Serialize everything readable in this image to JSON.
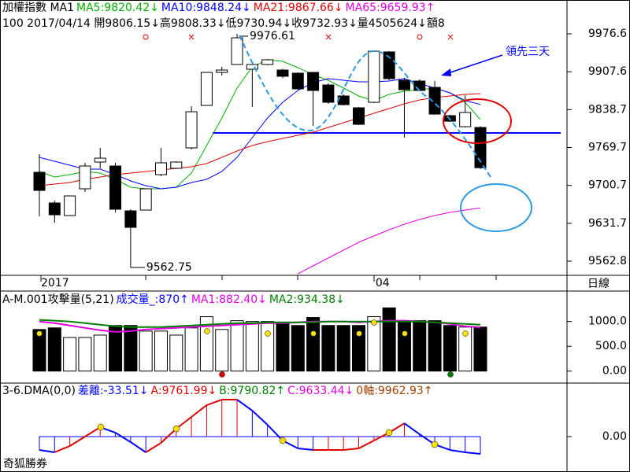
{
  "brand": "奇狐勝券",
  "chart_data": [
    {
      "type": "candlestick",
      "title": "加權指數 MA1",
      "info": "100 2017/04/14 開9806.15↓高9808.33↓低9730.94↓收9732.93↓量4505624↓額8",
      "period": "日線",
      "annotation": "領先三天",
      "categories": [
        "2017",
        null,
        null,
        null,
        null,
        null,
        null,
        null,
        null,
        null,
        null,
        null,
        null,
        null,
        null,
        null,
        null,
        null,
        null,
        null,
        null,
        null,
        "04",
        null,
        null,
        null,
        null,
        null,
        null,
        null
      ],
      "open": [
        9724.6,
        9668.7,
        9645.8,
        9694.5,
        9743.2,
        9736.0,
        9654.4,
        9655.8,
        9720.3,
        9731.8,
        9769.0,
        9846.3,
        9906.4,
        9920.8,
        9912.2,
        9920.8,
        9910.7,
        9905.0,
        9906.4,
        9883.5,
        9863.5,
        9842.0,
        9852.0,
        9943.7,
        9892.1,
        9890.7,
        9879.2,
        9827.7,
        9807.6,
        9806.15
      ],
      "high": [
        9757.5,
        9673.0,
        9681.6,
        9741.8,
        9769.0,
        9741.8,
        9657.3,
        9694.5,
        9769.0,
        9744.6,
        9844.9,
        9906.4,
        9916.5,
        9976.61,
        9920.8,
        9930.8,
        9913.0,
        9906.4,
        9906.4,
        9886.4,
        9866.4,
        9843.4,
        9946.5,
        9945.1,
        9896.4,
        9893.6,
        9890.7,
        9829.1,
        9864.9,
        9808.33
      ],
      "low": [
        9644.4,
        9632.9,
        9645.8,
        9688.8,
        9731.7,
        9651.5,
        9562.75,
        9655.8,
        9717.4,
        9730.3,
        9766.1,
        9846.3,
        9900.7,
        9920.8,
        9843.4,
        9919.4,
        9896.0,
        9875.0,
        9809.0,
        9849.2,
        9846.3,
        9810.5,
        9850.6,
        9892.1,
        9787.6,
        9872.1,
        9829.1,
        9816.2,
        9806.2,
        9730.94
      ],
      "close": [
        9691.6,
        9647.2,
        9681.6,
        9736.0,
        9750.3,
        9657.3,
        9624.3,
        9694.5,
        9741.8,
        9743.2,
        9834.8,
        9906.4,
        9910.7,
        9969.4,
        9920.8,
        9929.4,
        9899.3,
        9876.4,
        9873.5,
        9852.0,
        9847.7,
        9811.9,
        9945.1,
        9895.0,
        9874.9,
        9873.5,
        9830.5,
        9817.6,
        9833.4,
        9732.93
      ],
      "up_color": "#ffffff",
      "down_color": "#000000",
      "series": [
        {
          "name": "MA5:9820.42↓",
          "color": "#00b000",
          "values": [
            9726.0,
            9716.0,
            9720.3,
            9726.0,
            9723.2,
            9711.7,
            9697.4,
            9694.5,
            9694.5,
            9697.4,
            9723.2,
            9773.3,
            9823.4,
            9877.8,
            9916.5,
            9929.4,
            9926.5,
            9915.0,
            9902.2,
            9892.1,
            9877.8,
            9863.5,
            9854.9,
            9866.4,
            9872.1,
            9875.0,
            9877.8,
            9869.2,
            9852.0,
            9820.42
          ]
        },
        {
          "name": "MA10:9848.24↓",
          "color": "#0000ff",
          "values": [
            9751.8,
            9744.6,
            9737.5,
            9730.3,
            9730.3,
            9720.3,
            9708.8,
            9700.2,
            9694.5,
            9697.4,
            9706.0,
            9711.7,
            9726.0,
            9751.8,
            9787.6,
            9823.4,
            9852.0,
            9873.5,
            9887.8,
            9895.0,
            9892.1,
            9889.3,
            9889.3,
            9890.7,
            9895.0,
            9886.4,
            9877.8,
            9869.2,
            9854.9,
            9848.24
          ]
        },
        {
          "name": "MA21:9867.66↓",
          "color": "#e00000",
          "values": [
            9700.2,
            9703.1,
            9706.0,
            9711.7,
            9716.0,
            9720.3,
            9723.2,
            9726.0,
            9728.9,
            9731.8,
            9734.6,
            9740.3,
            9751.8,
            9763.3,
            9773.3,
            9780.4,
            9786.2,
            9791.9,
            9797.6,
            9806.2,
            9814.8,
            9823.4,
            9832.0,
            9840.6,
            9849.2,
            9856.3,
            9860.6,
            9863.5,
            9866.4,
            9867.66
          ]
        },
        {
          "name": "MA65:9659.93↑",
          "color": "#e000e0",
          "values": [
            null,
            null,
            null,
            null,
            null,
            null,
            null,
            null,
            null,
            null,
            null,
            null,
            null,
            null,
            null,
            null,
            null,
            9539.9,
            9554.2,
            9568.5,
            9582.8,
            9597.1,
            9608.6,
            9620.1,
            9630.1,
            9638.7,
            9645.8,
            9651.6,
            9655.9,
            9659.93
          ]
        }
      ],
      "hline": {
        "value": 9796.2,
        "color": "#0000ff"
      },
      "ylim": [
        9537,
        10038.2
      ],
      "yticks": [
        9976.6,
        9907.6,
        9838.7,
        9769.7,
        9700.7,
        9631.7,
        9562.8
      ]
    },
    {
      "type": "bar",
      "title": "A-M.001攻擊量(5,21)",
      "series": [
        {
          "name": "成交量_:870↑",
          "color": "#0000ff",
          "kind": "bar",
          "values": [
            838.8,
            871.0,
            677.5,
            677.5,
            725.9,
            919.4,
            919.4,
            806.5,
            806.5,
            725.9,
            871.0,
            1096.8,
            838.8,
            1016.2,
            1000.1,
            1000.1,
            951.7,
            919.4,
            1080.7,
            919.4,
            919.4,
            919.4,
            1096.8,
            1274.3,
            1016.2,
            1016.2,
            1016.2,
            919.4,
            887.2,
            887.2
          ]
        },
        {
          "name": "MA1:882.40↓",
          "color": "#e000e0",
          "kind": "line",
          "values": [
            1000.1,
            967.8,
            919.4,
            871.0,
            822.6,
            790.4,
            806.5,
            838.8,
            854.9,
            871.0,
            887.2,
            903.3,
            919.4,
            935.5,
            951.7,
            967.8,
            967.8,
            983.9,
            1000.1,
            1000.1,
            1000.1,
            983.9,
            1000.1,
            1016.2,
            1016.2,
            1000.1,
            983.9,
            951.7,
            903.3,
            882.4
          ]
        },
        {
          "name": "MA2:934.38↓",
          "color": "#008000",
          "kind": "line",
          "values": [
            1032.3,
            1016.2,
            1000.1,
            967.8,
            935.5,
            903.3,
            887.2,
            887.2,
            887.2,
            903.3,
            919.4,
            935.5,
            951.7,
            967.8,
            967.8,
            983.9,
            983.9,
            983.9,
            983.9,
            1000.1,
            1000.1,
            1000.1,
            1000.1,
            1000.1,
            1000.1,
            1000.1,
            983.9,
            967.8,
            951.7,
            934.38
          ]
        }
      ],
      "ylim": [
        -242,
        1612.9
      ],
      "yticks": [
        {
          "value": 1000,
          "label": "1000.0"
        },
        {
          "value": 500,
          "label": "500.0"
        },
        {
          "value": 0,
          "label": "0.00"
        }
      ]
    },
    {
      "type": "line",
      "title": "3-6.DMA(0,0)",
      "series": [
        {
          "name": "差離:-33.51↓",
          "color": "#0000ff",
          "up_color": "#e00000",
          "values": [
            -25.8,
            -30.4,
            -18.2,
            0,
            18.2,
            7.6,
            -10.6,
            -30.4,
            -12.2,
            15.2,
            38.0,
            60.8,
            71.4,
            71.4,
            50.2,
            22.8,
            -7.6,
            -22.8,
            -25.8,
            -25.8,
            -25.8,
            -22.8,
            -7.6,
            7.6,
            25.8,
            4.6,
            -15.2,
            -25.8,
            -30.4,
            -33.51
          ]
        }
      ],
      "legend_items": [
        {
          "text": "A:9761.99↓",
          "color": "#e00000"
        },
        {
          "text": "B:9790.82↑",
          "color": "#008000"
        },
        {
          "text": "C:9633.44↓",
          "color": "#e000e0"
        },
        {
          "text": "0軸:9962.93↑",
          "color": "#a04000"
        }
      ],
      "ylim": [
        -68.4,
        103.4
      ],
      "yticks": [
        {
          "value": 0,
          "label": "0.00"
        }
      ]
    }
  ]
}
